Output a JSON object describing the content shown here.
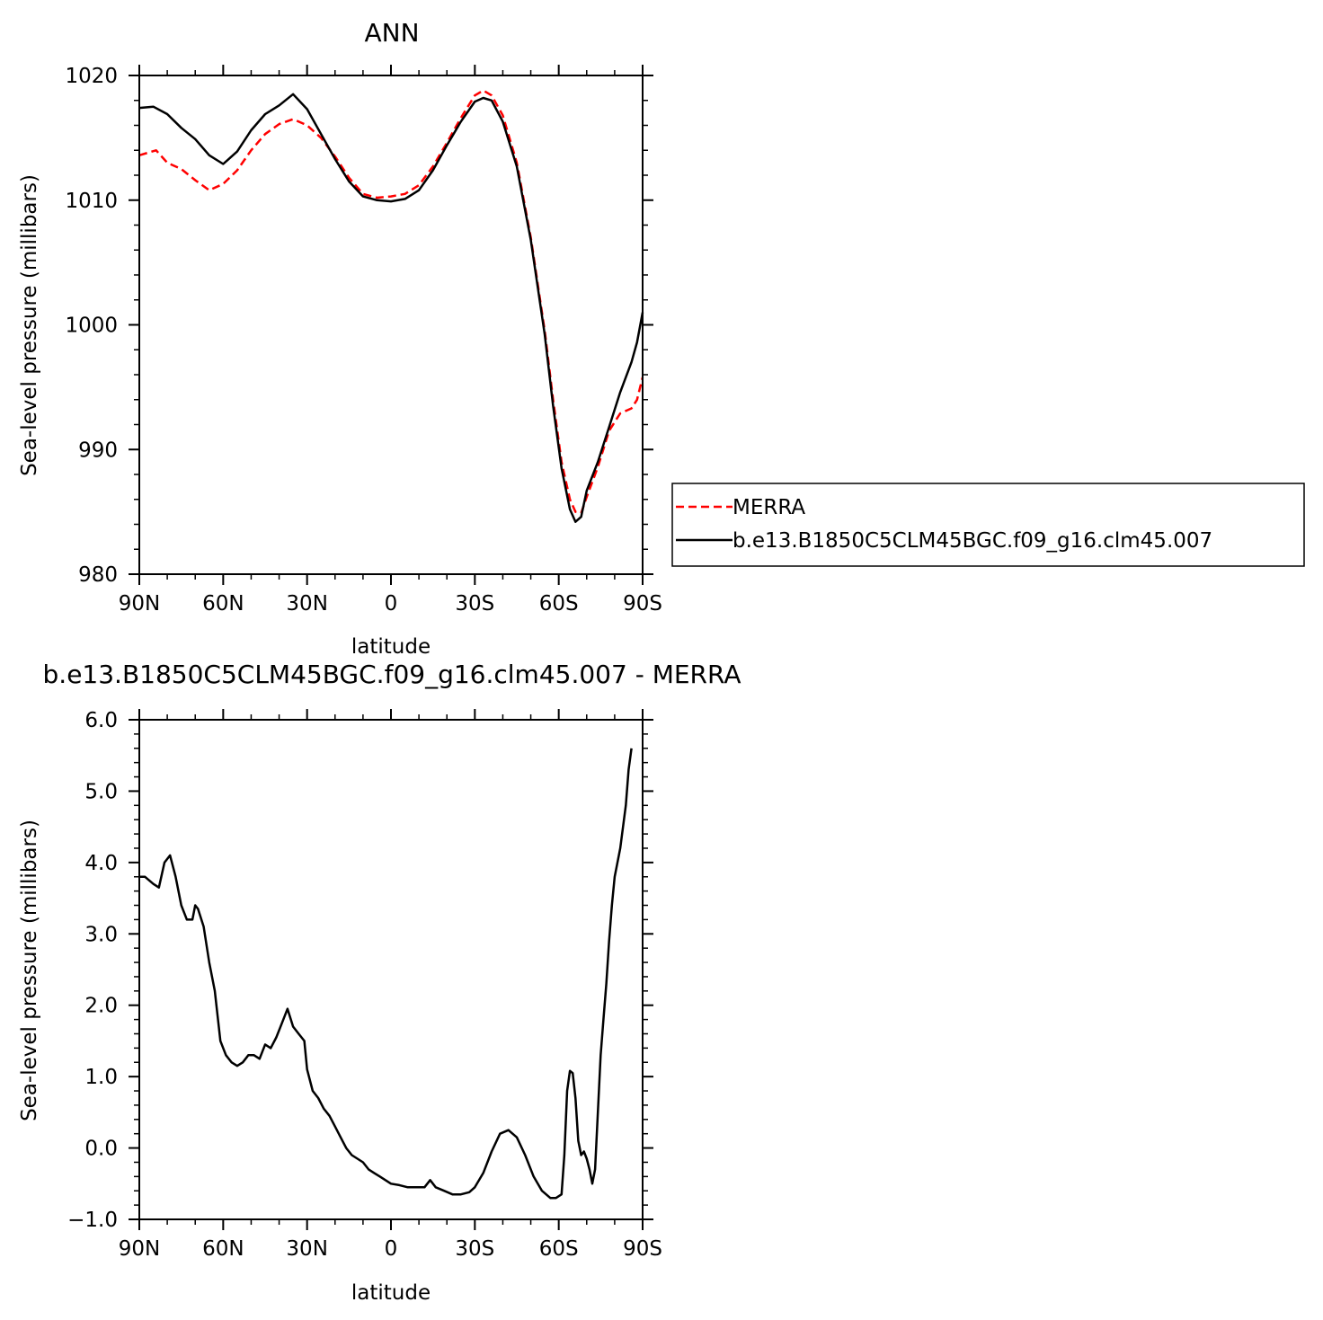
{
  "colors": {
    "merra": "#ff0000",
    "model": "#000000",
    "frame": "#000000",
    "background": "#ffffff"
  },
  "chart_data": [
    {
      "type": "line",
      "title": "ANN",
      "xlabel": "latitude",
      "ylabel": "Sea-level pressure (millibars)",
      "xlim": [
        -90,
        90
      ],
      "ylim": [
        980,
        1020
      ],
      "x_ticks": [
        -90,
        -60,
        -30,
        0,
        30,
        60,
        90
      ],
      "x_tick_labels": [
        "90N",
        "60N",
        "30N",
        "0",
        "30S",
        "60S",
        "90S"
      ],
      "y_ticks": [
        980,
        990,
        1000,
        1010,
        1020
      ],
      "y_tick_labels": [
        "980",
        "990",
        "1000",
        "1010",
        "1020"
      ],
      "legend": {
        "placement": "right",
        "entries": [
          "MERRA",
          "b.e13.B1850C5CLM45BGC.f09_g16.clm45.007"
        ]
      },
      "series": [
        {
          "name": "MERRA",
          "style": "dashed",
          "points": [
            [
              -90,
              1013.6
            ],
            [
              -84,
              1014.0
            ],
            [
              -80,
              1013.0
            ],
            [
              -75,
              1012.5
            ],
            [
              -70,
              1011.6
            ],
            [
              -65,
              1010.8
            ],
            [
              -60,
              1011.3
            ],
            [
              -55,
              1012.4
            ],
            [
              -50,
              1014.0
            ],
            [
              -45,
              1015.3
            ],
            [
              -40,
              1016.1
            ],
            [
              -35,
              1016.5
            ],
            [
              -30,
              1016.0
            ],
            [
              -25,
              1015.0
            ],
            [
              -20,
              1013.5
            ],
            [
              -15,
              1011.8
            ],
            [
              -10,
              1010.5
            ],
            [
              -5,
              1010.2
            ],
            [
              0,
              1010.3
            ],
            [
              5,
              1010.5
            ],
            [
              10,
              1011.2
            ],
            [
              15,
              1012.7
            ],
            [
              20,
              1014.6
            ],
            [
              25,
              1016.6
            ],
            [
              30,
              1018.4
            ],
            [
              33,
              1018.8
            ],
            [
              36,
              1018.4
            ],
            [
              40,
              1016.8
            ],
            [
              45,
              1013.0
            ],
            [
              50,
              1007.0
            ],
            [
              55,
              999.5
            ],
            [
              58,
              994.0
            ],
            [
              61,
              989.0
            ],
            [
              64,
              986.0
            ],
            [
              66,
              985.0
            ],
            [
              68,
              984.9
            ],
            [
              70,
              986.2
            ],
            [
              74,
              988.6
            ],
            [
              78,
              991.5
            ],
            [
              82,
              992.9
            ],
            [
              86,
              993.3
            ],
            [
              88,
              994.0
            ],
            [
              90,
              995.8
            ]
          ]
        },
        {
          "name": "b.e13.B1850C5CLM45BGC.f09_g16.clm45.007",
          "style": "solid",
          "points": [
            [
              -90,
              1017.4
            ],
            [
              -85,
              1017.5
            ],
            [
              -80,
              1016.9
            ],
            [
              -75,
              1015.8
            ],
            [
              -70,
              1014.9
            ],
            [
              -65,
              1013.6
            ],
            [
              -60,
              1012.9
            ],
            [
              -55,
              1013.9
            ],
            [
              -50,
              1015.6
            ],
            [
              -45,
              1016.9
            ],
            [
              -40,
              1017.6
            ],
            [
              -35,
              1018.5
            ],
            [
              -30,
              1017.3
            ],
            [
              -25,
              1015.3
            ],
            [
              -20,
              1013.3
            ],
            [
              -15,
              1011.5
            ],
            [
              -10,
              1010.3
            ],
            [
              -5,
              1010.0
            ],
            [
              0,
              1009.9
            ],
            [
              5,
              1010.1
            ],
            [
              10,
              1010.8
            ],
            [
              15,
              1012.4
            ],
            [
              20,
              1014.4
            ],
            [
              25,
              1016.3
            ],
            [
              30,
              1017.9
            ],
            [
              33,
              1018.2
            ],
            [
              36,
              1018.0
            ],
            [
              40,
              1016.3
            ],
            [
              45,
              1012.7
            ],
            [
              50,
              1006.8
            ],
            [
              55,
              999.2
            ],
            [
              58,
              993.5
            ],
            [
              61,
              988.5
            ],
            [
              64,
              985.2
            ],
            [
              66,
              984.2
            ],
            [
              68,
              984.6
            ],
            [
              70,
              986.7
            ],
            [
              74,
              989.0
            ],
            [
              78,
              991.8
            ],
            [
              82,
              994.6
            ],
            [
              86,
              997.0
            ],
            [
              88,
              998.6
            ],
            [
              90,
              1001.0
            ]
          ]
        }
      ]
    },
    {
      "type": "line",
      "title": "b.e13.B1850C5CLM45BGC.f09_g16.clm45.007 - MERRA",
      "xlabel": "latitude",
      "ylabel": "Sea-level pressure (millibars)",
      "xlim": [
        -90,
        90
      ],
      "ylim": [
        -1.0,
        6.0
      ],
      "x_ticks": [
        -90,
        -60,
        -30,
        0,
        30,
        60,
        90
      ],
      "x_tick_labels": [
        "90N",
        "60N",
        "30N",
        "0",
        "30S",
        "60S",
        "90S"
      ],
      "y_ticks": [
        -1,
        0,
        1,
        2,
        3,
        4,
        5,
        6
      ],
      "y_tick_labels": [
        "−1.0",
        "0.0",
        "1.0",
        "2.0",
        "3.0",
        "4.0",
        "5.0",
        "6.0"
      ],
      "series": [
        {
          "name": "",
          "style": "solid",
          "points": [
            [
              -90,
              3.8
            ],
            [
              -88,
              3.8
            ],
            [
              -85,
              3.7
            ],
            [
              -83,
              3.65
            ],
            [
              -81,
              4.0
            ],
            [
              -79,
              4.1
            ],
            [
              -77,
              3.8
            ],
            [
              -75,
              3.4
            ],
            [
              -73,
              3.2
            ],
            [
              -71,
              3.2
            ],
            [
              -70,
              3.4
            ],
            [
              -69,
              3.35
            ],
            [
              -67,
              3.1
            ],
            [
              -65,
              2.6
            ],
            [
              -63,
              2.2
            ],
            [
              -61,
              1.5
            ],
            [
              -59,
              1.3
            ],
            [
              -57,
              1.2
            ],
            [
              -55,
              1.15
            ],
            [
              -53,
              1.2
            ],
            [
              -51,
              1.3
            ],
            [
              -49,
              1.3
            ],
            [
              -47,
              1.25
            ],
            [
              -45,
              1.45
            ],
            [
              -43,
              1.4
            ],
            [
              -41,
              1.55
            ],
            [
              -39,
              1.75
            ],
            [
              -37,
              1.95
            ],
            [
              -35,
              1.7
            ],
            [
              -33,
              1.6
            ],
            [
              -31,
              1.5
            ],
            [
              -30,
              1.1
            ],
            [
              -28,
              0.8
            ],
            [
              -26,
              0.7
            ],
            [
              -24,
              0.55
            ],
            [
              -22,
              0.45
            ],
            [
              -20,
              0.3
            ],
            [
              -18,
              0.15
            ],
            [
              -16,
              0.0
            ],
            [
              -14,
              -0.1
            ],
            [
              -12,
              -0.15
            ],
            [
              -10,
              -0.2
            ],
            [
              -8,
              -0.3
            ],
            [
              -6,
              -0.35
            ],
            [
              -4,
              -0.4
            ],
            [
              -2,
              -0.45
            ],
            [
              0,
              -0.5
            ],
            [
              3,
              -0.52
            ],
            [
              6,
              -0.55
            ],
            [
              9,
              -0.55
            ],
            [
              12,
              -0.55
            ],
            [
              14,
              -0.45
            ],
            [
              16,
              -0.55
            ],
            [
              19,
              -0.6
            ],
            [
              22,
              -0.65
            ],
            [
              25,
              -0.65
            ],
            [
              28,
              -0.62
            ],
            [
              30,
              -0.55
            ],
            [
              33,
              -0.35
            ],
            [
              36,
              -0.05
            ],
            [
              39,
              0.2
            ],
            [
              42,
              0.25
            ],
            [
              45,
              0.15
            ],
            [
              48,
              -0.1
            ],
            [
              51,
              -0.4
            ],
            [
              54,
              -0.6
            ],
            [
              57,
              -0.7
            ],
            [
              59,
              -0.7
            ],
            [
              61,
              -0.65
            ],
            [
              62,
              -0.1
            ],
            [
              63,
              0.8
            ],
            [
              64,
              1.08
            ],
            [
              65,
              1.05
            ],
            [
              66,
              0.7
            ],
            [
              67,
              0.1
            ],
            [
              68,
              -0.1
            ],
            [
              69,
              -0.05
            ],
            [
              70,
              -0.15
            ],
            [
              71,
              -0.3
            ],
            [
              72,
              -0.5
            ],
            [
              73,
              -0.3
            ],
            [
              74,
              0.5
            ],
            [
              75,
              1.3
            ],
            [
              76,
              1.8
            ],
            [
              77,
              2.3
            ],
            [
              78,
              2.9
            ],
            [
              79,
              3.4
            ],
            [
              80,
              3.8
            ],
            [
              81,
              4.0
            ],
            [
              82,
              4.2
            ],
            [
              84,
              4.8
            ],
            [
              85,
              5.3
            ],
            [
              86,
              5.6
            ]
          ]
        }
      ]
    }
  ]
}
